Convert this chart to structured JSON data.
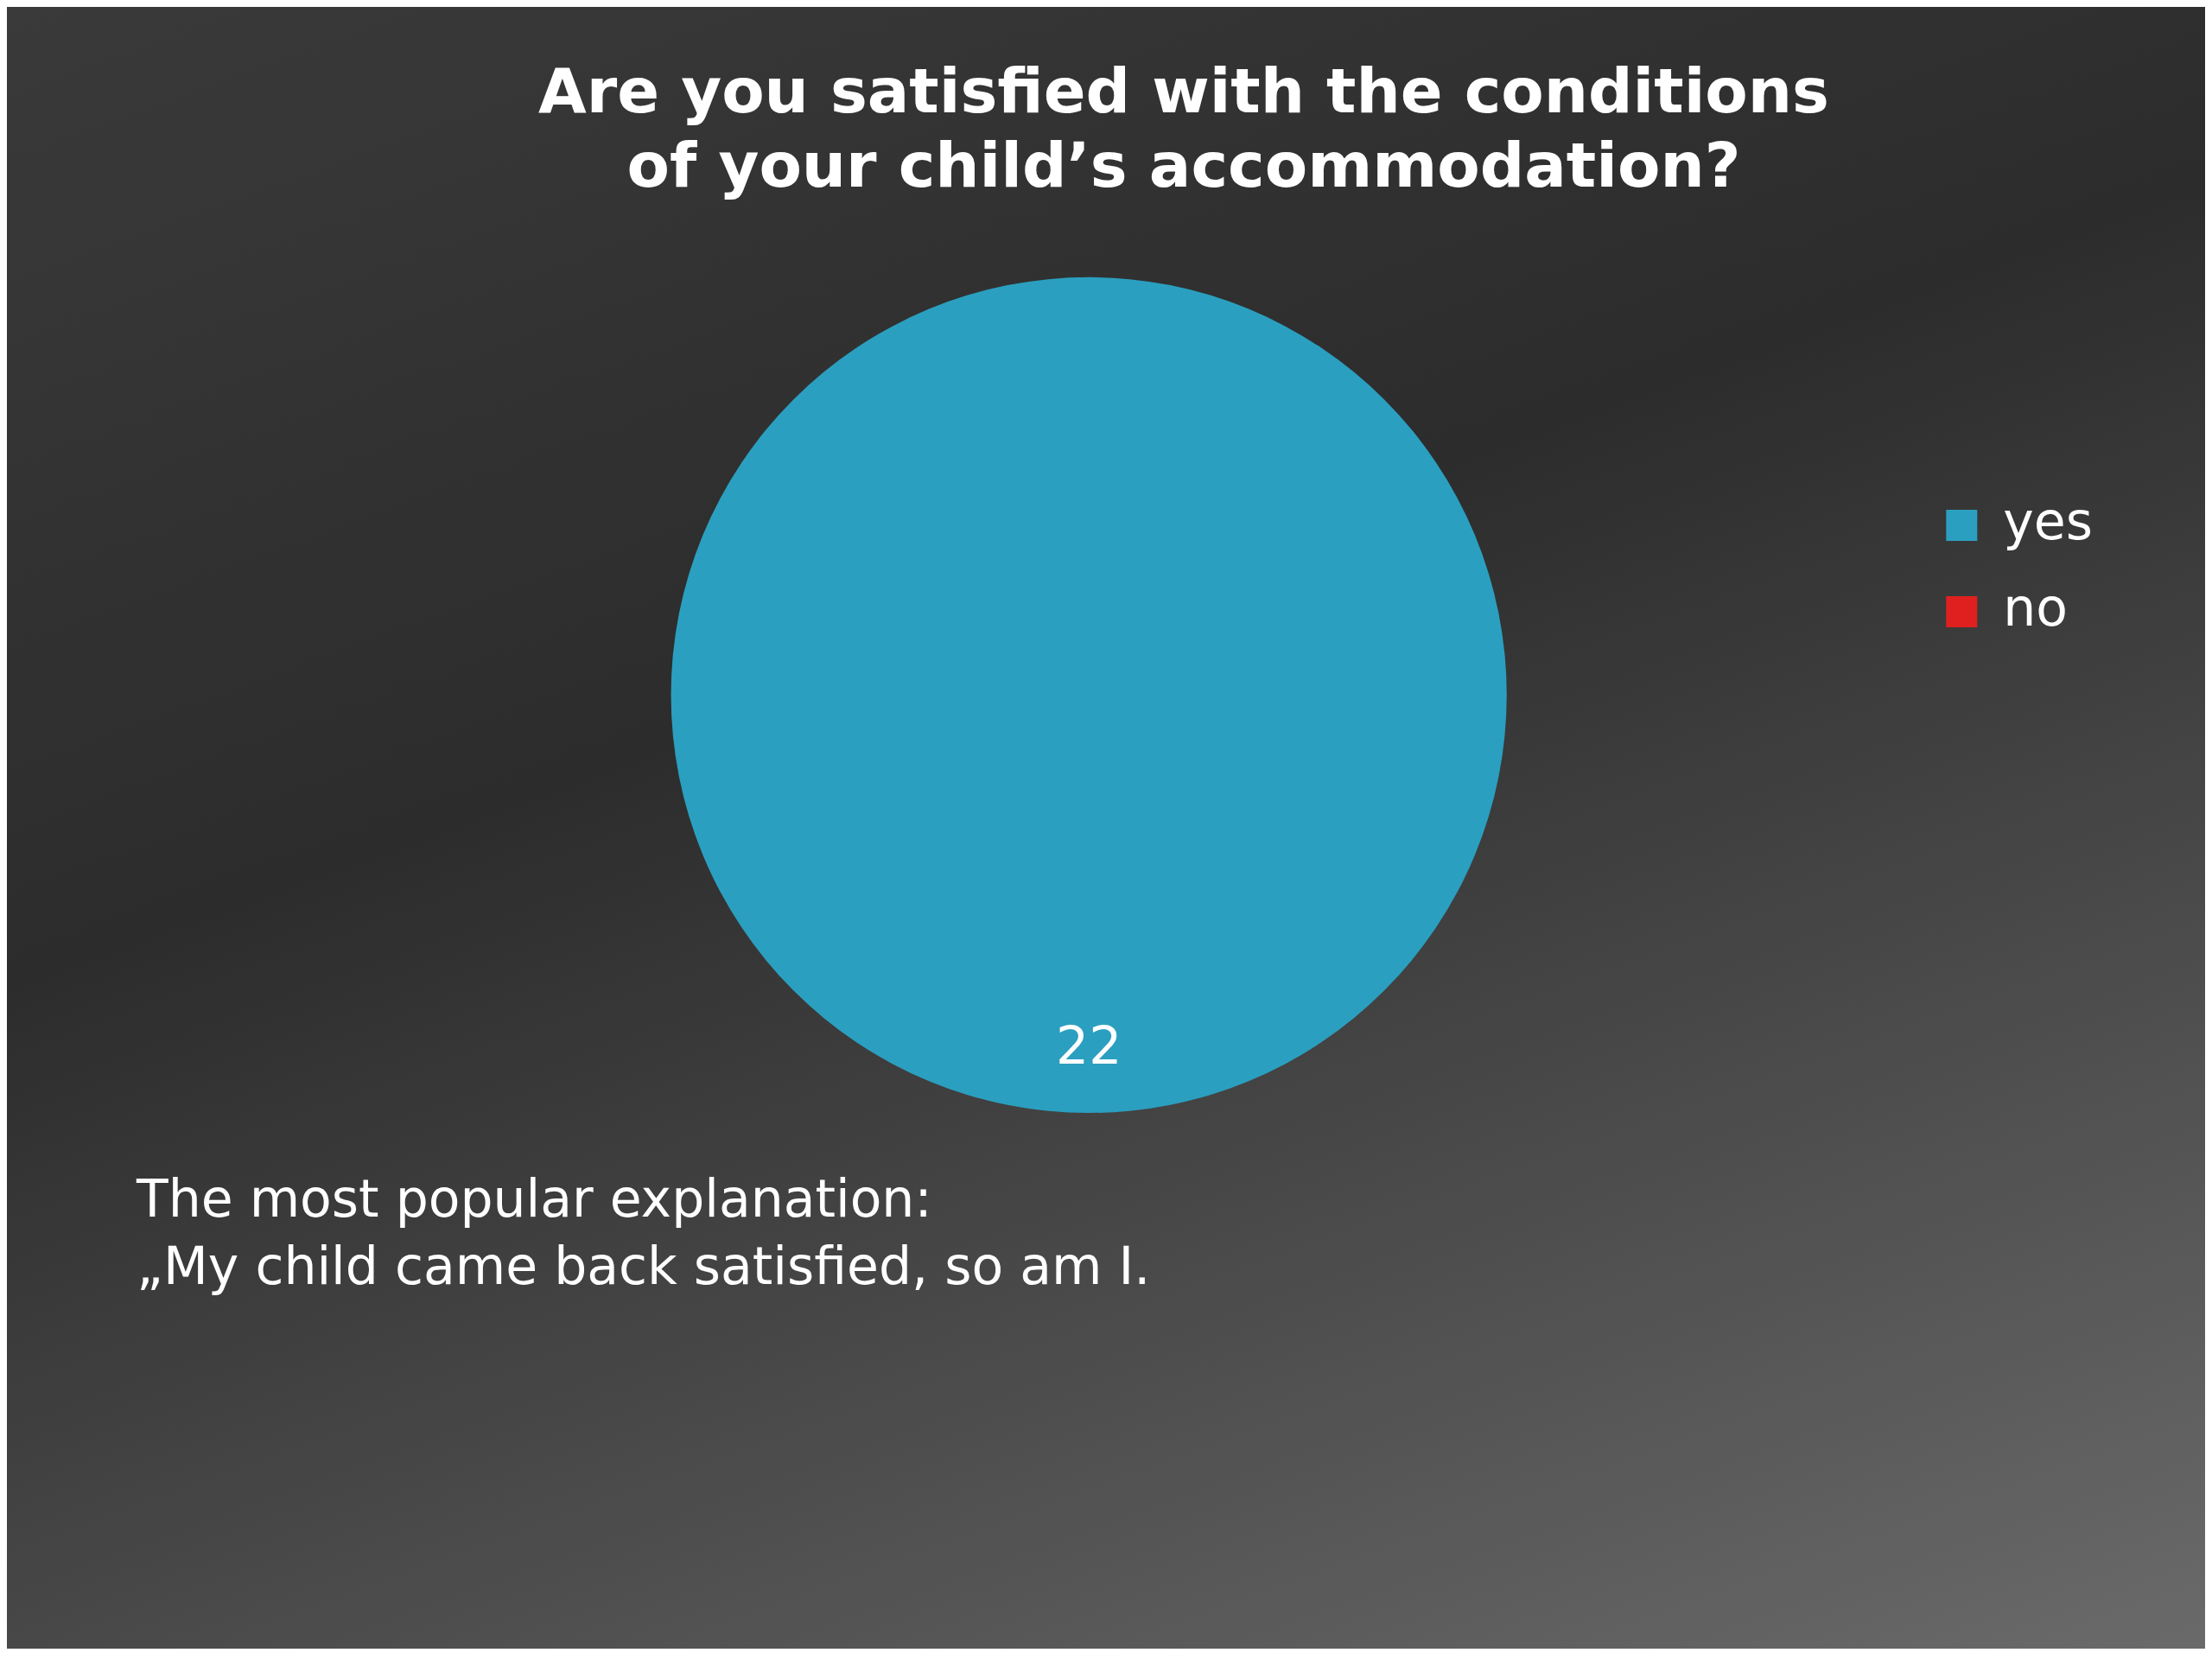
{
  "chart_data": {
    "type": "pie",
    "title": "Are you satisfied with the conditions of your child’s accommodation?",
    "categories": [
      "yes",
      "no"
    ],
    "values": [
      22,
      0
    ],
    "colors": [
      "#2b9fc0",
      "#e0201f"
    ],
    "data_labels": true,
    "legend": "right",
    "annotations": [
      "The most popular explanation:",
      "„My child came back satisfied, so am I."
    ]
  }
}
